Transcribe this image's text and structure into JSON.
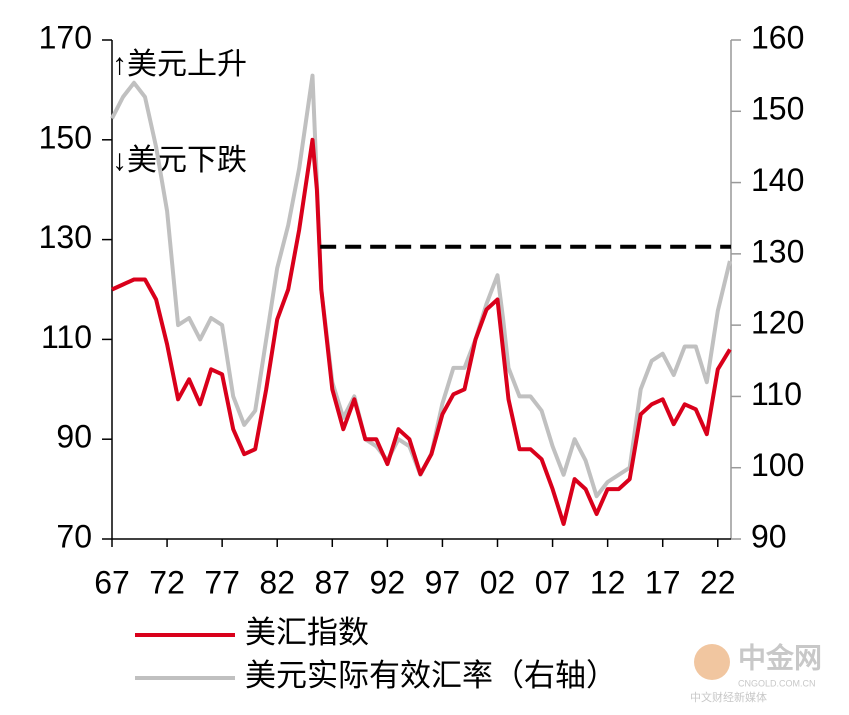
{
  "chart_data": {
    "type": "line",
    "annotations": [
      "↑美元上升",
      "↓美元下跌"
    ],
    "x": [
      1967,
      1968,
      1969,
      1970,
      1971,
      1972,
      1973,
      1974,
      1975,
      1976,
      1977,
      1978,
      1979,
      1980,
      1981,
      1982,
      1983,
      1984,
      1985.2,
      1985.6,
      1986,
      1987,
      1988,
      1989,
      1990,
      1991,
      1992,
      1993,
      1994,
      1995,
      1996,
      1997,
      1998,
      1999,
      2000,
      2001,
      2002,
      2002.5,
      2003,
      2004,
      2005,
      2006,
      2007,
      2008,
      2009,
      2010,
      2011,
      2012,
      2013,
      2014,
      2015,
      2016,
      2017,
      2018,
      2019,
      2020,
      2021,
      2022,
      2023.1
    ],
    "series": [
      {
        "name": "美汇指数",
        "color": "#d9001b",
        "axis": "y",
        "values": [
          120,
          121,
          122,
          122,
          118,
          109,
          98,
          102,
          97,
          104,
          103,
          92,
          87,
          88,
          100,
          114,
          120,
          132,
          150,
          140,
          120,
          100,
          92,
          98,
          90,
          90,
          85,
          92,
          90,
          83,
          87,
          95,
          99,
          100,
          110,
          116,
          118,
          108,
          98,
          88,
          88,
          86,
          80,
          73,
          82,
          80,
          75,
          80,
          80,
          82,
          95,
          97,
          98,
          93,
          97,
          96,
          91,
          104,
          108
        ]
      },
      {
        "name": "美元实际有效汇率（右轴）",
        "color": "#c0c0c0",
        "axis": "y2",
        "values": [
          149,
          152,
          154,
          152,
          145,
          136,
          120,
          121,
          118,
          121,
          120,
          110,
          106,
          108,
          118,
          128,
          134,
          142,
          155,
          140,
          125,
          112,
          107,
          110,
          104,
          103,
          101,
          104,
          103,
          99,
          102,
          109,
          114,
          114,
          118,
          123,
          127,
          121,
          114,
          110,
          110,
          108,
          103,
          99,
          104,
          101,
          96,
          98,
          99,
          100,
          111,
          115,
          116,
          113,
          117,
          117,
          112,
          122,
          129
        ]
      }
    ],
    "reference_line": {
      "value": 131,
      "axis": "y2",
      "x": [
        1985.9,
        2023.2
      ]
    },
    "xlim": [
      1967,
      2023.2
    ],
    "xticks": [
      {
        "value": 1967,
        "label": "67"
      },
      {
        "value": 1972,
        "label": "72"
      },
      {
        "value": 1977,
        "label": "77"
      },
      {
        "value": 1982,
        "label": "82"
      },
      {
        "value": 1987,
        "label": "87"
      },
      {
        "value": 1992,
        "label": "92"
      },
      {
        "value": 1997,
        "label": "97"
      },
      {
        "value": 2002,
        "label": "02"
      },
      {
        "value": 2007,
        "label": "07"
      },
      {
        "value": 2012,
        "label": "12"
      },
      {
        "value": 2017,
        "label": "17"
      },
      {
        "value": 2022,
        "label": "22"
      }
    ],
    "ylim": [
      70,
      170
    ],
    "yticks": [
      70,
      90,
      110,
      130,
      150,
      170
    ],
    "y2lim": [
      90,
      160
    ],
    "y2ticks": [
      90,
      100,
      110,
      120,
      130,
      140,
      150,
      160
    ],
    "watermark": [
      "中金网",
      "CNGOLD.COM.CN",
      "中文财经新媒体"
    ]
  }
}
